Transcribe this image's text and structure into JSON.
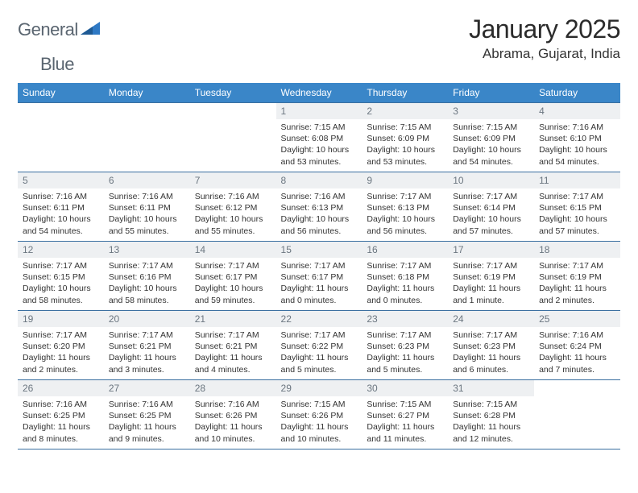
{
  "logo": {
    "word1": "General",
    "word2": "Blue"
  },
  "title": "January 2025",
  "location": "Abrama, Gujarat, India",
  "colors": {
    "header_bg": "#3a86c8",
    "header_text": "#ffffff",
    "daynum_bg": "#eef0f2",
    "daynum_text": "#6b7680",
    "rule": "#3a6fa0",
    "logo_text": "#5a6570",
    "logo_blue": "#2f79c4"
  },
  "day_headers": [
    "Sunday",
    "Monday",
    "Tuesday",
    "Wednesday",
    "Thursday",
    "Friday",
    "Saturday"
  ],
  "weeks": [
    [
      {
        "n": "",
        "sun": "",
        "set": "",
        "day": ""
      },
      {
        "n": "",
        "sun": "",
        "set": "",
        "day": ""
      },
      {
        "n": "",
        "sun": "",
        "set": "",
        "day": ""
      },
      {
        "n": "1",
        "sun": "Sunrise: 7:15 AM",
        "set": "Sunset: 6:08 PM",
        "day": "Daylight: 10 hours and 53 minutes."
      },
      {
        "n": "2",
        "sun": "Sunrise: 7:15 AM",
        "set": "Sunset: 6:09 PM",
        "day": "Daylight: 10 hours and 53 minutes."
      },
      {
        "n": "3",
        "sun": "Sunrise: 7:15 AM",
        "set": "Sunset: 6:09 PM",
        "day": "Daylight: 10 hours and 54 minutes."
      },
      {
        "n": "4",
        "sun": "Sunrise: 7:16 AM",
        "set": "Sunset: 6:10 PM",
        "day": "Daylight: 10 hours and 54 minutes."
      }
    ],
    [
      {
        "n": "5",
        "sun": "Sunrise: 7:16 AM",
        "set": "Sunset: 6:11 PM",
        "day": "Daylight: 10 hours and 54 minutes."
      },
      {
        "n": "6",
        "sun": "Sunrise: 7:16 AM",
        "set": "Sunset: 6:11 PM",
        "day": "Daylight: 10 hours and 55 minutes."
      },
      {
        "n": "7",
        "sun": "Sunrise: 7:16 AM",
        "set": "Sunset: 6:12 PM",
        "day": "Daylight: 10 hours and 55 minutes."
      },
      {
        "n": "8",
        "sun": "Sunrise: 7:16 AM",
        "set": "Sunset: 6:13 PM",
        "day": "Daylight: 10 hours and 56 minutes."
      },
      {
        "n": "9",
        "sun": "Sunrise: 7:17 AM",
        "set": "Sunset: 6:13 PM",
        "day": "Daylight: 10 hours and 56 minutes."
      },
      {
        "n": "10",
        "sun": "Sunrise: 7:17 AM",
        "set": "Sunset: 6:14 PM",
        "day": "Daylight: 10 hours and 57 minutes."
      },
      {
        "n": "11",
        "sun": "Sunrise: 7:17 AM",
        "set": "Sunset: 6:15 PM",
        "day": "Daylight: 10 hours and 57 minutes."
      }
    ],
    [
      {
        "n": "12",
        "sun": "Sunrise: 7:17 AM",
        "set": "Sunset: 6:15 PM",
        "day": "Daylight: 10 hours and 58 minutes."
      },
      {
        "n": "13",
        "sun": "Sunrise: 7:17 AM",
        "set": "Sunset: 6:16 PM",
        "day": "Daylight: 10 hours and 58 minutes."
      },
      {
        "n": "14",
        "sun": "Sunrise: 7:17 AM",
        "set": "Sunset: 6:17 PM",
        "day": "Daylight: 10 hours and 59 minutes."
      },
      {
        "n": "15",
        "sun": "Sunrise: 7:17 AM",
        "set": "Sunset: 6:17 PM",
        "day": "Daylight: 11 hours and 0 minutes."
      },
      {
        "n": "16",
        "sun": "Sunrise: 7:17 AM",
        "set": "Sunset: 6:18 PM",
        "day": "Daylight: 11 hours and 0 minutes."
      },
      {
        "n": "17",
        "sun": "Sunrise: 7:17 AM",
        "set": "Sunset: 6:19 PM",
        "day": "Daylight: 11 hours and 1 minute."
      },
      {
        "n": "18",
        "sun": "Sunrise: 7:17 AM",
        "set": "Sunset: 6:19 PM",
        "day": "Daylight: 11 hours and 2 minutes."
      }
    ],
    [
      {
        "n": "19",
        "sun": "Sunrise: 7:17 AM",
        "set": "Sunset: 6:20 PM",
        "day": "Daylight: 11 hours and 2 minutes."
      },
      {
        "n": "20",
        "sun": "Sunrise: 7:17 AM",
        "set": "Sunset: 6:21 PM",
        "day": "Daylight: 11 hours and 3 minutes."
      },
      {
        "n": "21",
        "sun": "Sunrise: 7:17 AM",
        "set": "Sunset: 6:21 PM",
        "day": "Daylight: 11 hours and 4 minutes."
      },
      {
        "n": "22",
        "sun": "Sunrise: 7:17 AM",
        "set": "Sunset: 6:22 PM",
        "day": "Daylight: 11 hours and 5 minutes."
      },
      {
        "n": "23",
        "sun": "Sunrise: 7:17 AM",
        "set": "Sunset: 6:23 PM",
        "day": "Daylight: 11 hours and 5 minutes."
      },
      {
        "n": "24",
        "sun": "Sunrise: 7:17 AM",
        "set": "Sunset: 6:23 PM",
        "day": "Daylight: 11 hours and 6 minutes."
      },
      {
        "n": "25",
        "sun": "Sunrise: 7:16 AM",
        "set": "Sunset: 6:24 PM",
        "day": "Daylight: 11 hours and 7 minutes."
      }
    ],
    [
      {
        "n": "26",
        "sun": "Sunrise: 7:16 AM",
        "set": "Sunset: 6:25 PM",
        "day": "Daylight: 11 hours and 8 minutes."
      },
      {
        "n": "27",
        "sun": "Sunrise: 7:16 AM",
        "set": "Sunset: 6:25 PM",
        "day": "Daylight: 11 hours and 9 minutes."
      },
      {
        "n": "28",
        "sun": "Sunrise: 7:16 AM",
        "set": "Sunset: 6:26 PM",
        "day": "Daylight: 11 hours and 10 minutes."
      },
      {
        "n": "29",
        "sun": "Sunrise: 7:15 AM",
        "set": "Sunset: 6:26 PM",
        "day": "Daylight: 11 hours and 10 minutes."
      },
      {
        "n": "30",
        "sun": "Sunrise: 7:15 AM",
        "set": "Sunset: 6:27 PM",
        "day": "Daylight: 11 hours and 11 minutes."
      },
      {
        "n": "31",
        "sun": "Sunrise: 7:15 AM",
        "set": "Sunset: 6:28 PM",
        "day": "Daylight: 11 hours and 12 minutes."
      },
      {
        "n": "",
        "sun": "",
        "set": "",
        "day": ""
      }
    ]
  ]
}
